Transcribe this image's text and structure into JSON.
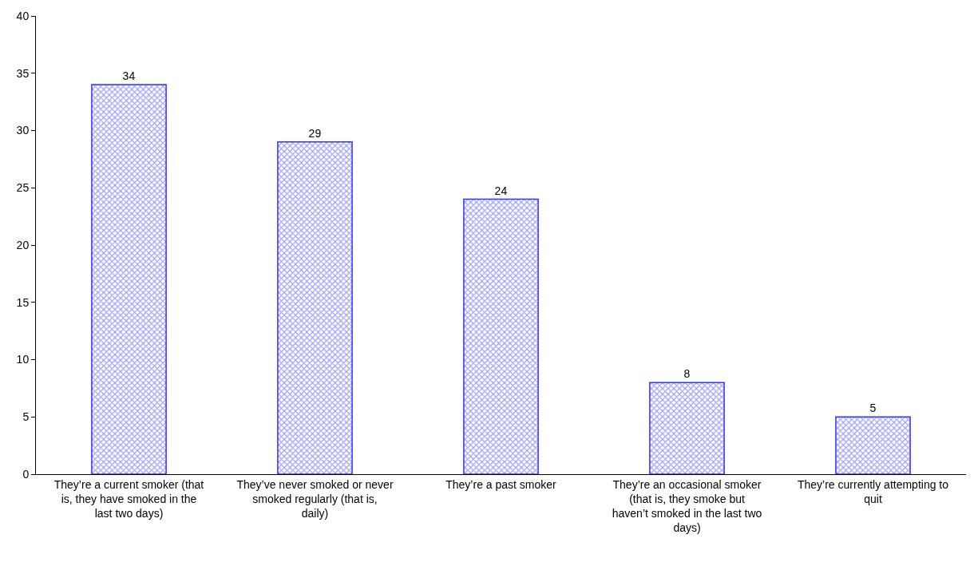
{
  "chart_data": {
    "type": "bar",
    "categories": [
      "They’re a current smoker (that is, they have smoked in the last two days)",
      "They’ve never smoked or never smoked regularly (that is, daily)",
      "They’re a past smoker",
      "They’re an occasional smoker (that is, they smoke but haven’t smoked in the last two days)",
      "They’re currently attempting to quit"
    ],
    "values": [
      34,
      29,
      24,
      8,
      5
    ],
    "color": "#3333ff",
    "ylim": [
      0,
      40
    ],
    "yticks": [
      0,
      5,
      10,
      15,
      20,
      25,
      30,
      35,
      40
    ],
    "data_labels": true
  }
}
